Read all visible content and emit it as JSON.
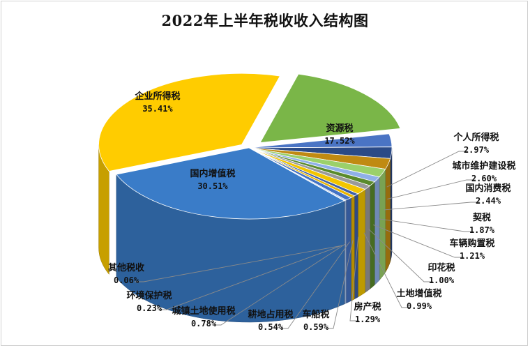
{
  "chart_data": {
    "type": "pie",
    "title": "2022年上半年税收收入结构图",
    "slices": [
      {
        "name": "资源税",
        "label": "17.52%",
        "value": 17.52,
        "color": "#7ab648"
      },
      {
        "name": "个人所得税",
        "label": "2.97%",
        "value": 2.97,
        "color": "#4a74c4"
      },
      {
        "name": "城市维护建设税",
        "label": "2.60%",
        "value": 2.6,
        "color": "#2b4a86"
      },
      {
        "name": "国内消费税",
        "label": "2.44%",
        "value": 2.44,
        "color": "#c08a12"
      },
      {
        "name": "契税",
        "label": "1.87%",
        "value": 1.87,
        "color": "#9bd06a"
      },
      {
        "name": "车辆购置税",
        "label": "1.21%",
        "value": 1.21,
        "color": "#8fb0e8"
      },
      {
        "name": "印花税",
        "label": "1.00%",
        "value": 1.0,
        "color": "#5a8a2c"
      },
      {
        "name": "土地增值税",
        "label": "0.99%",
        "value": 0.99,
        "color": "#9a9a9a"
      },
      {
        "name": "房产税",
        "label": "1.29%",
        "value": 1.29,
        "color": "#f2c500"
      },
      {
        "name": "车船税",
        "label": "0.59%",
        "value": 0.59,
        "color": "#3e5fa8"
      },
      {
        "name": "耕地占用税",
        "label": "0.54%",
        "value": 0.54,
        "color": "#e8b400"
      },
      {
        "name": "城镇土地使用税",
        "label": "0.78%",
        "value": 0.78,
        "color": "#4472c4"
      },
      {
        "name": "环境保护税",
        "label": "0.23%",
        "value": 0.23,
        "color": "#a9c6ee"
      },
      {
        "name": "其他税收",
        "label": "0.06%",
        "value": 0.06,
        "color": "#6d8fd6"
      },
      {
        "name": "国内增值税",
        "label": "30.51%",
        "value": 30.51,
        "color": "#3a7cc8"
      },
      {
        "name": "企业所得税",
        "label": "35.41%",
        "value": 35.41,
        "color": "#ffcc00"
      }
    ]
  }
}
